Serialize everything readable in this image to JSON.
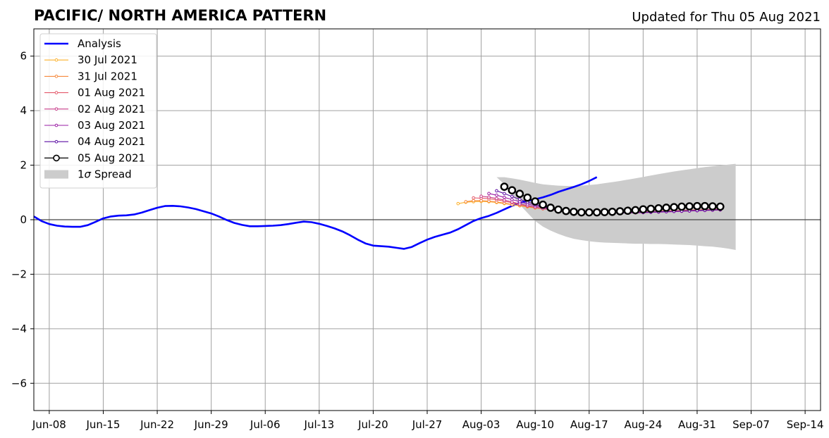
{
  "header": {
    "title": "PACIFIC/ NORTH AMERICA PATTERN",
    "updated": "Updated for Thu 05 Aug 2021"
  },
  "chart_data": {
    "type": "line",
    "x_axis": {
      "type": "date",
      "range": [
        "2021-06-06",
        "2021-09-16"
      ],
      "ticks": [
        "2021-06-08",
        "2021-06-15",
        "2021-06-22",
        "2021-06-29",
        "2021-07-06",
        "2021-07-13",
        "2021-07-20",
        "2021-07-27",
        "2021-08-03",
        "2021-08-10",
        "2021-08-17",
        "2021-08-24",
        "2021-08-31",
        "2021-09-07",
        "2021-09-14"
      ],
      "tick_labels": [
        "Jun-08",
        "Jun-15",
        "Jun-22",
        "Jun-29",
        "Jul-06",
        "Jul-13",
        "Jul-20",
        "Jul-27",
        "Aug-03",
        "Aug-10",
        "Aug-17",
        "Aug-24",
        "Aug-31",
        "Sep-07",
        "Sep-14"
      ]
    },
    "y_axis": {
      "range": [
        -7,
        7
      ],
      "ticks": [
        -6,
        -4,
        -2,
        0,
        2,
        4,
        6
      ],
      "tick_labels": [
        "−6",
        "−4",
        "−2",
        "0",
        "2",
        "4",
        "6"
      ]
    },
    "grid": true,
    "zero_line": true,
    "legend_position": "upper-left",
    "legend": [
      {
        "label": "Analysis",
        "color": "#0000ff",
        "style": "thick-line"
      },
      {
        "label": "30 Jul 2021",
        "color": "#fcb12b",
        "style": "line-marker"
      },
      {
        "label": "31 Jul 2021",
        "color": "#f6893c",
        "style": "line-marker"
      },
      {
        "label": "01 Aug 2021",
        "color": "#e4596a",
        "style": "line-marker"
      },
      {
        "label": "02 Aug 2021",
        "color": "#c83b89",
        "style": "line-marker"
      },
      {
        "label": "03 Aug 2021",
        "color": "#9a1ca4",
        "style": "line-marker"
      },
      {
        "label": "04 Aug 2021",
        "color": "#5b0ea3",
        "style": "line-marker"
      },
      {
        "label": "05 Aug 2021",
        "color": "#000000",
        "style": "line-open-circle"
      },
      {
        "label_prefix": "1",
        "label_symbol": "σ",
        "label_suffix": " Spread",
        "color": "#cccccc",
        "style": "patch"
      }
    ],
    "analysis": {
      "start_date": "2021-06-06",
      "color": "#0000ff",
      "values": [
        0.12,
        -0.05,
        -0.16,
        -0.22,
        -0.25,
        -0.26,
        -0.26,
        -0.2,
        -0.08,
        0.05,
        0.12,
        0.15,
        0.16,
        0.19,
        0.26,
        0.35,
        0.44,
        0.5,
        0.51,
        0.49,
        0.45,
        0.39,
        0.31,
        0.23,
        0.12,
        -0.01,
        -0.12,
        -0.19,
        -0.24,
        -0.24,
        -0.23,
        -0.22,
        -0.2,
        -0.16,
        -0.11,
        -0.07,
        -0.09,
        -0.15,
        -0.23,
        -0.32,
        -0.43,
        -0.57,
        -0.73,
        -0.87,
        -0.95,
        -0.97,
        -0.99,
        -1.03,
        -1.07,
        -1.0,
        -0.86,
        -0.73,
        -0.63,
        -0.55,
        -0.47,
        -0.35,
        -0.2,
        -0.05,
        0.06,
        0.14,
        0.25,
        0.38,
        0.51,
        0.62,
        0.69,
        0.75,
        0.82,
        0.91,
        1.02,
        1.11,
        1.2,
        1.3,
        1.42,
        1.56
      ]
    },
    "forecasts": [
      {
        "name": "30 Jul 2021",
        "start_date": "2021-07-31",
        "color": "#fcb12b",
        "values": [
          0.59,
          0.64,
          0.66,
          0.67,
          0.66,
          0.63,
          0.59,
          0.55,
          0.51,
          0.47,
          0.43,
          0.4,
          0.37,
          0.34,
          0.32,
          0.3,
          0.29,
          0.28,
          0.27,
          0.27,
          0.27,
          0.27,
          0.27,
          0.28,
          0.28,
          0.29,
          0.3,
          0.31,
          0.32,
          0.33,
          0.34,
          0.35,
          0.36,
          0.37,
          0.38
        ]
      },
      {
        "name": "31 Jul 2021",
        "start_date": "2021-08-01",
        "color": "#f6893c",
        "values": [
          0.66,
          0.7,
          0.7,
          0.68,
          0.65,
          0.61,
          0.56,
          0.52,
          0.48,
          0.44,
          0.4,
          0.37,
          0.35,
          0.33,
          0.31,
          0.3,
          0.29,
          0.28,
          0.28,
          0.28,
          0.28,
          0.28,
          0.29,
          0.29,
          0.3,
          0.31,
          0.32,
          0.33,
          0.34,
          0.35,
          0.36,
          0.37,
          0.38,
          0.39
        ]
      },
      {
        "name": "01 Aug 2021",
        "start_date": "2021-08-02",
        "color": "#e4596a",
        "values": [
          0.8,
          0.79,
          0.77,
          0.73,
          0.68,
          0.62,
          0.56,
          0.5,
          0.45,
          0.41,
          0.37,
          0.34,
          0.32,
          0.3,
          0.29,
          0.28,
          0.27,
          0.27,
          0.27,
          0.27,
          0.27,
          0.28,
          0.28,
          0.29,
          0.3,
          0.31,
          0.32,
          0.33,
          0.34,
          0.35,
          0.36,
          0.37,
          0.38
        ]
      },
      {
        "name": "02 Aug 2021",
        "start_date": "2021-08-03",
        "color": "#c83b89",
        "values": [
          0.86,
          0.83,
          0.78,
          0.72,
          0.65,
          0.58,
          0.52,
          0.46,
          0.41,
          0.37,
          0.33,
          0.3,
          0.28,
          0.27,
          0.26,
          0.25,
          0.25,
          0.25,
          0.25,
          0.25,
          0.25,
          0.26,
          0.27,
          0.28,
          0.29,
          0.3,
          0.31,
          0.32,
          0.33,
          0.34,
          0.35,
          0.36
        ]
      },
      {
        "name": "03 Aug 2021",
        "start_date": "2021-08-04",
        "color": "#9a1ca4",
        "values": [
          0.96,
          0.9,
          0.82,
          0.74,
          0.66,
          0.58,
          0.51,
          0.45,
          0.4,
          0.35,
          0.31,
          0.29,
          0.27,
          0.26,
          0.25,
          0.25,
          0.25,
          0.25,
          0.25,
          0.26,
          0.26,
          0.27,
          0.28,
          0.29,
          0.3,
          0.31,
          0.32,
          0.33,
          0.34,
          0.35,
          0.36
        ]
      },
      {
        "name": "04 Aug 2021",
        "start_date": "2021-08-05",
        "color": "#5b0ea3",
        "values": [
          1.06,
          0.96,
          0.85,
          0.75,
          0.65,
          0.56,
          0.48,
          0.41,
          0.36,
          0.32,
          0.29,
          0.27,
          0.26,
          0.25,
          0.25,
          0.25,
          0.25,
          0.26,
          0.26,
          0.27,
          0.28,
          0.29,
          0.3,
          0.31,
          0.32,
          0.33,
          0.34,
          0.35,
          0.36,
          0.37
        ]
      },
      {
        "name": "05 Aug 2021",
        "start_date": "2021-08-06",
        "color": "#000000",
        "values": [
          1.21,
          1.08,
          0.95,
          0.81,
          0.67,
          0.55,
          0.44,
          0.37,
          0.32,
          0.29,
          0.27,
          0.27,
          0.27,
          0.28,
          0.29,
          0.31,
          0.33,
          0.35,
          0.38,
          0.4,
          0.42,
          0.44,
          0.46,
          0.48,
          0.49,
          0.5,
          0.5,
          0.49,
          0.48
        ]
      }
    ],
    "spread": {
      "name": "1σ Spread",
      "color": "#cccccc",
      "start_date": "2021-08-05",
      "upper": [
        1.56,
        1.56,
        1.52,
        1.47,
        1.41,
        1.35,
        1.3,
        1.27,
        1.25,
        1.24,
        1.24,
        1.25,
        1.27,
        1.3,
        1.34,
        1.38,
        1.42,
        1.47,
        1.52,
        1.57,
        1.62,
        1.67,
        1.72,
        1.77,
        1.81,
        1.85,
        1.89,
        1.93,
        1.96,
        1.99,
        2.02,
        2.05
      ],
      "lower": [
        1.56,
        1.3,
        0.9,
        0.55,
        0.25,
        -0.05,
        -0.25,
        -0.4,
        -0.52,
        -0.62,
        -0.7,
        -0.75,
        -0.79,
        -0.82,
        -0.84,
        -0.85,
        -0.86,
        -0.87,
        -0.88,
        -0.88,
        -0.89,
        -0.89,
        -0.9,
        -0.91,
        -0.92,
        -0.93,
        -0.95,
        -0.97,
        -0.99,
        -1.02,
        -1.06,
        -1.11
      ]
    }
  }
}
